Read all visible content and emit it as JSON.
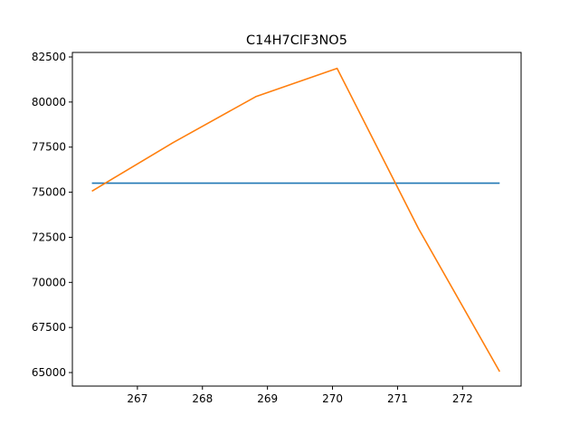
{
  "chart_data": {
    "type": "line",
    "title": "C14H7ClF3NO5",
    "xlabel": "",
    "ylabel": "",
    "xlim": [
      266.0,
      272.9
    ],
    "ylim": [
      64250,
      82750
    ],
    "x_ticks": [
      267,
      268,
      269,
      270,
      271,
      272
    ],
    "y_ticks": [
      65000,
      67500,
      70000,
      72500,
      75000,
      77500,
      80000,
      82500
    ],
    "grid": false,
    "series": [
      {
        "color": "#1f77b4",
        "points": [
          [
            266.3,
            75500
          ],
          [
            272.57,
            75500
          ]
        ]
      },
      {
        "color": "#ff7f0e",
        "points": [
          [
            266.3,
            75060
          ],
          [
            267.55,
            77750
          ],
          [
            268.82,
            80300
          ],
          [
            270.07,
            81870
          ],
          [
            271.32,
            73000
          ],
          [
            272.57,
            65050
          ]
        ]
      }
    ]
  }
}
